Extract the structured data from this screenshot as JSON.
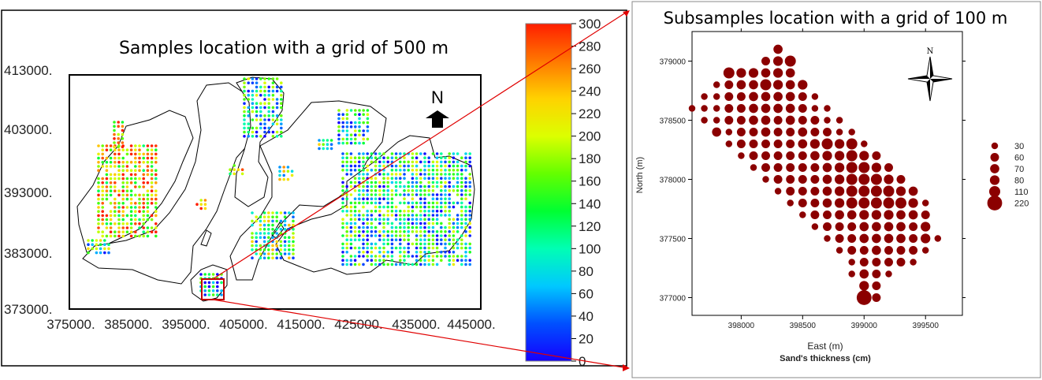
{
  "left_panel": {
    "title": "Samples location with a grid of 500 m",
    "north_label": "N",
    "x_ticks": [
      "375000.",
      "385000.",
      "395000.",
      "405000.",
      "415000.",
      "425000.",
      "435000.",
      "445000."
    ],
    "y_ticks": [
      "413000.",
      "403000.",
      "393000.",
      "383000.",
      "373000."
    ]
  },
  "colorbar": {
    "ticks": [
      "300",
      "280",
      "260",
      "240",
      "220",
      "200",
      "180",
      "160",
      "140",
      "120",
      "100",
      "80",
      "60",
      "40",
      "20",
      "0"
    ],
    "min": 0,
    "max": 300,
    "colors": [
      "#1400ff",
      "#0050ff",
      "#00c8ff",
      "#00ffb4",
      "#00ff32",
      "#64ff00",
      "#dcff00",
      "#ffd200",
      "#ff7800",
      "#ff1e00"
    ]
  },
  "right_panel": {
    "title": "Subsamples location with a grid of 100 m",
    "xlabel": "East (m)",
    "ylabel": "North (m)",
    "caption": "Sand's thickness (cm)",
    "compass_label": "N",
    "point_color": "#8b0000"
  },
  "chart_data": [
    {
      "type": "scatter",
      "title": "Samples location with a grid of 500 m",
      "xlim": [
        375000,
        445000
      ],
      "ylim": [
        373000,
        413000
      ],
      "x_ticks": [
        375000,
        385000,
        395000,
        405000,
        415000,
        425000,
        435000,
        445000
      ],
      "y_ticks": [
        373000,
        383000,
        393000,
        403000,
        413000
      ],
      "value_range": [
        0,
        300
      ]
    },
    {
      "type": "scatter",
      "title": "Subsamples location with a grid of 100 m",
      "xlabel": "East (m)",
      "ylabel": "North (m)",
      "xlim": [
        397600,
        399800
      ],
      "ylim": [
        376850,
        379250
      ],
      "x_ticks": [
        398000,
        398500,
        399000,
        399500
      ],
      "y_ticks": [
        377000,
        377500,
        378000,
        378500,
        379000
      ],
      "size_legend": [
        "30",
        "60",
        "70",
        "80",
        "110",
        "220"
      ],
      "size_title": "Sand's thickness (cm)",
      "points": [
        {
          "x": 398300,
          "y": 379100,
          "v": 70
        },
        {
          "x": 398200,
          "y": 379000,
          "v": 60
        },
        {
          "x": 398300,
          "y": 379000,
          "v": 80
        },
        {
          "x": 398400,
          "y": 379000,
          "v": 110
        },
        {
          "x": 397900,
          "y": 378900,
          "v": 110
        },
        {
          "x": 398000,
          "y": 378900,
          "v": 80
        },
        {
          "x": 398100,
          "y": 378900,
          "v": 80
        },
        {
          "x": 398200,
          "y": 378900,
          "v": 70
        },
        {
          "x": 398300,
          "y": 378900,
          "v": 80
        },
        {
          "x": 398400,
          "y": 378900,
          "v": 70
        },
        {
          "x": 397800,
          "y": 378800,
          "v": 30
        },
        {
          "x": 397900,
          "y": 378800,
          "v": 60
        },
        {
          "x": 398000,
          "y": 378800,
          "v": 70
        },
        {
          "x": 398100,
          "y": 378800,
          "v": 70
        },
        {
          "x": 398200,
          "y": 378800,
          "v": 110
        },
        {
          "x": 398300,
          "y": 378800,
          "v": 80
        },
        {
          "x": 398400,
          "y": 378800,
          "v": 70
        },
        {
          "x": 398500,
          "y": 378800,
          "v": 80
        },
        {
          "x": 397700,
          "y": 378700,
          "v": 30
        },
        {
          "x": 397800,
          "y": 378700,
          "v": 30
        },
        {
          "x": 397900,
          "y": 378700,
          "v": 60
        },
        {
          "x": 398000,
          "y": 378700,
          "v": 60
        },
        {
          "x": 398100,
          "y": 378700,
          "v": 70
        },
        {
          "x": 398200,
          "y": 378700,
          "v": 70
        },
        {
          "x": 398300,
          "y": 378700,
          "v": 70
        },
        {
          "x": 398400,
          "y": 378700,
          "v": 70
        },
        {
          "x": 398500,
          "y": 378700,
          "v": 60
        },
        {
          "x": 398600,
          "y": 378700,
          "v": 30
        },
        {
          "x": 397600,
          "y": 378600,
          "v": 30
        },
        {
          "x": 397700,
          "y": 378600,
          "v": 30
        },
        {
          "x": 397800,
          "y": 378600,
          "v": 30
        },
        {
          "x": 397900,
          "y": 378600,
          "v": 60
        },
        {
          "x": 398000,
          "y": 378600,
          "v": 60
        },
        {
          "x": 398100,
          "y": 378600,
          "v": 70
        },
        {
          "x": 398200,
          "y": 378600,
          "v": 70
        },
        {
          "x": 398300,
          "y": 378600,
          "v": 70
        },
        {
          "x": 398400,
          "y": 378600,
          "v": 70
        },
        {
          "x": 398500,
          "y": 378600,
          "v": 60
        },
        {
          "x": 398600,
          "y": 378600,
          "v": 30
        },
        {
          "x": 398700,
          "y": 378600,
          "v": 30
        },
        {
          "x": 397700,
          "y": 378500,
          "v": 30
        },
        {
          "x": 397800,
          "y": 378500,
          "v": 30
        },
        {
          "x": 397900,
          "y": 378500,
          "v": 60
        },
        {
          "x": 398000,
          "y": 378500,
          "v": 60
        },
        {
          "x": 398100,
          "y": 378500,
          "v": 70
        },
        {
          "x": 398200,
          "y": 378500,
          "v": 70
        },
        {
          "x": 398300,
          "y": 378500,
          "v": 60
        },
        {
          "x": 398400,
          "y": 378500,
          "v": 70
        },
        {
          "x": 398500,
          "y": 378500,
          "v": 60
        },
        {
          "x": 398600,
          "y": 378500,
          "v": 60
        },
        {
          "x": 398700,
          "y": 378500,
          "v": 30
        },
        {
          "x": 398800,
          "y": 378500,
          "v": 30
        },
        {
          "x": 397800,
          "y": 378400,
          "v": 70
        },
        {
          "x": 397900,
          "y": 378400,
          "v": 30
        },
        {
          "x": 398000,
          "y": 378400,
          "v": 60
        },
        {
          "x": 398100,
          "y": 378400,
          "v": 60
        },
        {
          "x": 398200,
          "y": 378400,
          "v": 70
        },
        {
          "x": 398300,
          "y": 378400,
          "v": 60
        },
        {
          "x": 398400,
          "y": 378400,
          "v": 60
        },
        {
          "x": 398500,
          "y": 378400,
          "v": 70
        },
        {
          "x": 398600,
          "y": 378400,
          "v": 60
        },
        {
          "x": 398700,
          "y": 378400,
          "v": 60
        },
        {
          "x": 398800,
          "y": 378400,
          "v": 30
        },
        {
          "x": 398900,
          "y": 378400,
          "v": 30
        },
        {
          "x": 397900,
          "y": 378300,
          "v": 30
        },
        {
          "x": 398000,
          "y": 378300,
          "v": 60
        },
        {
          "x": 398100,
          "y": 378300,
          "v": 60
        },
        {
          "x": 398200,
          "y": 378300,
          "v": 60
        },
        {
          "x": 398300,
          "y": 378300,
          "v": 60
        },
        {
          "x": 398400,
          "y": 378300,
          "v": 60
        },
        {
          "x": 398500,
          "y": 378300,
          "v": 70
        },
        {
          "x": 398600,
          "y": 378300,
          "v": 80
        },
        {
          "x": 398700,
          "y": 378300,
          "v": 110
        },
        {
          "x": 398800,
          "y": 378300,
          "v": 80
        },
        {
          "x": 398900,
          "y": 378300,
          "v": 110
        },
        {
          "x": 399000,
          "y": 378300,
          "v": 30
        },
        {
          "x": 398000,
          "y": 378200,
          "v": 30
        },
        {
          "x": 398100,
          "y": 378200,
          "v": 60
        },
        {
          "x": 398200,
          "y": 378200,
          "v": 60
        },
        {
          "x": 398300,
          "y": 378200,
          "v": 60
        },
        {
          "x": 398400,
          "y": 378200,
          "v": 60
        },
        {
          "x": 398500,
          "y": 378200,
          "v": 60
        },
        {
          "x": 398600,
          "y": 378200,
          "v": 70
        },
        {
          "x": 398700,
          "y": 378200,
          "v": 80
        },
        {
          "x": 398800,
          "y": 378200,
          "v": 80
        },
        {
          "x": 398900,
          "y": 378200,
          "v": 110
        },
        {
          "x": 399000,
          "y": 378200,
          "v": 80
        },
        {
          "x": 399100,
          "y": 378200,
          "v": 60
        },
        {
          "x": 398100,
          "y": 378100,
          "v": 30
        },
        {
          "x": 398200,
          "y": 378100,
          "v": 60
        },
        {
          "x": 398300,
          "y": 378100,
          "v": 60
        },
        {
          "x": 398400,
          "y": 378100,
          "v": 60
        },
        {
          "x": 398500,
          "y": 378100,
          "v": 60
        },
        {
          "x": 398600,
          "y": 378100,
          "v": 60
        },
        {
          "x": 398700,
          "y": 378100,
          "v": 70
        },
        {
          "x": 398800,
          "y": 378100,
          "v": 80
        },
        {
          "x": 398900,
          "y": 378100,
          "v": 110
        },
        {
          "x": 399000,
          "y": 378100,
          "v": 110
        },
        {
          "x": 399100,
          "y": 378100,
          "v": 80
        },
        {
          "x": 399200,
          "y": 378100,
          "v": 60
        },
        {
          "x": 398200,
          "y": 378000,
          "v": 30
        },
        {
          "x": 398300,
          "y": 378000,
          "v": 60
        },
        {
          "x": 398400,
          "y": 378000,
          "v": 60
        },
        {
          "x": 398500,
          "y": 378000,
          "v": 60
        },
        {
          "x": 398600,
          "y": 378000,
          "v": 60
        },
        {
          "x": 398700,
          "y": 378000,
          "v": 70
        },
        {
          "x": 398800,
          "y": 378000,
          "v": 80
        },
        {
          "x": 398900,
          "y": 378000,
          "v": 110
        },
        {
          "x": 399000,
          "y": 378000,
          "v": 110
        },
        {
          "x": 399100,
          "y": 378000,
          "v": 110
        },
        {
          "x": 399200,
          "y": 378000,
          "v": 80
        },
        {
          "x": 399300,
          "y": 378000,
          "v": 60
        },
        {
          "x": 398300,
          "y": 377900,
          "v": 30
        },
        {
          "x": 398400,
          "y": 377900,
          "v": 60
        },
        {
          "x": 398500,
          "y": 377900,
          "v": 60
        },
        {
          "x": 398600,
          "y": 377900,
          "v": 60
        },
        {
          "x": 398700,
          "y": 377900,
          "v": 70
        },
        {
          "x": 398800,
          "y": 377900,
          "v": 80
        },
        {
          "x": 398900,
          "y": 377900,
          "v": 110
        },
        {
          "x": 399000,
          "y": 377900,
          "v": 110
        },
        {
          "x": 399100,
          "y": 377900,
          "v": 110
        },
        {
          "x": 399200,
          "y": 377900,
          "v": 110
        },
        {
          "x": 399300,
          "y": 377900,
          "v": 80
        },
        {
          "x": 399400,
          "y": 377900,
          "v": 70
        },
        {
          "x": 398400,
          "y": 377800,
          "v": 30
        },
        {
          "x": 398500,
          "y": 377800,
          "v": 60
        },
        {
          "x": 398600,
          "y": 377800,
          "v": 60
        },
        {
          "x": 398700,
          "y": 377800,
          "v": 70
        },
        {
          "x": 398800,
          "y": 377800,
          "v": 80
        },
        {
          "x": 398900,
          "y": 377800,
          "v": 110
        },
        {
          "x": 399000,
          "y": 377800,
          "v": 110
        },
        {
          "x": 399100,
          "y": 377800,
          "v": 110
        },
        {
          "x": 399200,
          "y": 377800,
          "v": 110
        },
        {
          "x": 399300,
          "y": 377800,
          "v": 110
        },
        {
          "x": 399400,
          "y": 377800,
          "v": 80
        },
        {
          "x": 399500,
          "y": 377800,
          "v": 30
        },
        {
          "x": 398500,
          "y": 377700,
          "v": 30
        },
        {
          "x": 398600,
          "y": 377700,
          "v": 60
        },
        {
          "x": 398700,
          "y": 377700,
          "v": 60
        },
        {
          "x": 398800,
          "y": 377700,
          "v": 70
        },
        {
          "x": 398900,
          "y": 377700,
          "v": 70
        },
        {
          "x": 399000,
          "y": 377700,
          "v": 80
        },
        {
          "x": 399100,
          "y": 377700,
          "v": 80
        },
        {
          "x": 399200,
          "y": 377700,
          "v": 80
        },
        {
          "x": 399300,
          "y": 377700,
          "v": 70
        },
        {
          "x": 399400,
          "y": 377700,
          "v": 70
        },
        {
          "x": 399500,
          "y": 377700,
          "v": 60
        },
        {
          "x": 398600,
          "y": 377600,
          "v": 30
        },
        {
          "x": 398700,
          "y": 377600,
          "v": 60
        },
        {
          "x": 398800,
          "y": 377600,
          "v": 60
        },
        {
          "x": 398900,
          "y": 377600,
          "v": 60
        },
        {
          "x": 399000,
          "y": 377600,
          "v": 70
        },
        {
          "x": 399100,
          "y": 377600,
          "v": 70
        },
        {
          "x": 399200,
          "y": 377600,
          "v": 70
        },
        {
          "x": 399300,
          "y": 377600,
          "v": 70
        },
        {
          "x": 399400,
          "y": 377600,
          "v": 60
        },
        {
          "x": 399500,
          "y": 377600,
          "v": 80
        },
        {
          "x": 398700,
          "y": 377500,
          "v": 30
        },
        {
          "x": 398800,
          "y": 377500,
          "v": 60
        },
        {
          "x": 398900,
          "y": 377500,
          "v": 60
        },
        {
          "x": 399000,
          "y": 377500,
          "v": 70
        },
        {
          "x": 399100,
          "y": 377500,
          "v": 70
        },
        {
          "x": 399200,
          "y": 377500,
          "v": 70
        },
        {
          "x": 399300,
          "y": 377500,
          "v": 70
        },
        {
          "x": 399400,
          "y": 377500,
          "v": 60
        },
        {
          "x": 399500,
          "y": 377500,
          "v": 80
        },
        {
          "x": 399600,
          "y": 377500,
          "v": 30
        },
        {
          "x": 398800,
          "y": 377400,
          "v": 30
        },
        {
          "x": 398900,
          "y": 377400,
          "v": 60
        },
        {
          "x": 399000,
          "y": 377400,
          "v": 60
        },
        {
          "x": 399100,
          "y": 377400,
          "v": 70
        },
        {
          "x": 399200,
          "y": 377400,
          "v": 60
        },
        {
          "x": 399300,
          "y": 377400,
          "v": 60
        },
        {
          "x": 399400,
          "y": 377400,
          "v": 60
        },
        {
          "x": 399500,
          "y": 377400,
          "v": 30
        },
        {
          "x": 398900,
          "y": 377300,
          "v": 30
        },
        {
          "x": 399000,
          "y": 377300,
          "v": 60
        },
        {
          "x": 399100,
          "y": 377300,
          "v": 60
        },
        {
          "x": 399200,
          "y": 377300,
          "v": 60
        },
        {
          "x": 399300,
          "y": 377300,
          "v": 60
        },
        {
          "x": 399400,
          "y": 377300,
          "v": 30
        },
        {
          "x": 398900,
          "y": 377200,
          "v": 30
        },
        {
          "x": 399000,
          "y": 377200,
          "v": 70
        },
        {
          "x": 399100,
          "y": 377200,
          "v": 60
        },
        {
          "x": 399200,
          "y": 377200,
          "v": 30
        },
        {
          "x": 399000,
          "y": 377100,
          "v": 80
        },
        {
          "x": 399100,
          "y": 377100,
          "v": 60
        },
        {
          "x": 399000,
          "y": 377000,
          "v": 220
        },
        {
          "x": 399100,
          "y": 377000,
          "v": 60
        }
      ]
    }
  ]
}
